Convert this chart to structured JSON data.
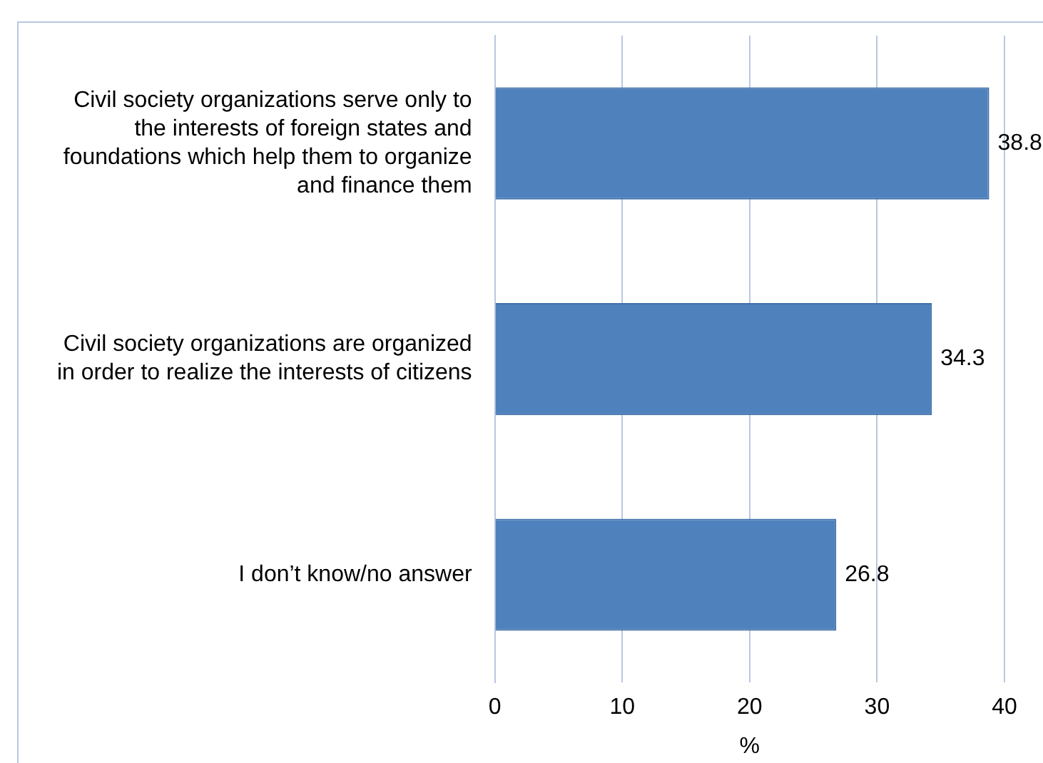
{
  "chart_data": {
    "type": "bar",
    "orientation": "horizontal",
    "xlabel": "%",
    "categories": [
      "Civil society organizations serve only to the interests of foreign states and foundations which help them to organize and finance them",
      "Civil society organizations are organized in order to realize the interests of citizens",
      "I don’t know/no answer"
    ],
    "values": [
      38.8,
      34.3,
      26.8
    ],
    "color": "#4f81bd",
    "xlim": [
      0,
      40
    ],
    "xticks": [
      0,
      10,
      20,
      30,
      40
    ],
    "grid": "x",
    "data_labels": true,
    "legend": false
  }
}
